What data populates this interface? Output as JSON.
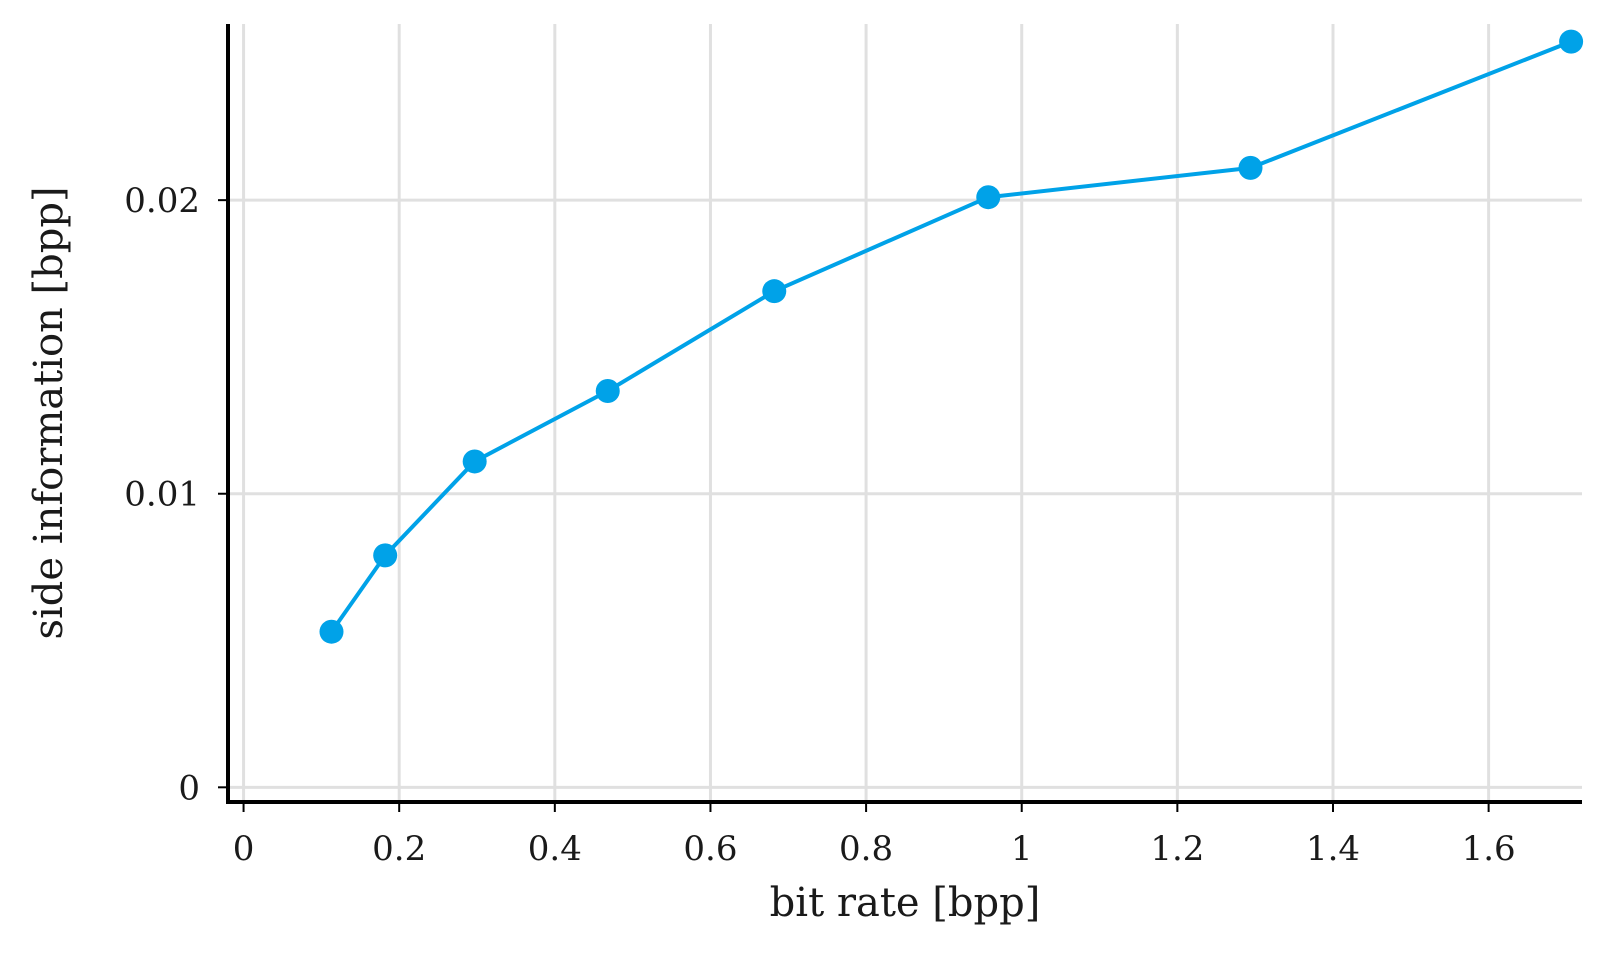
{
  "chart_data": {
    "type": "line",
    "xlabel": "bit rate [bpp]",
    "ylabel": "side information [bpp]",
    "xlim": [
      -0.02,
      1.72
    ],
    "ylim": [
      -0.0005,
      0.026
    ],
    "xticks": [
      0,
      0.2,
      0.4,
      0.6,
      0.8,
      1,
      1.2,
      1.4,
      1.6
    ],
    "xtick_labels": [
      "0",
      "0.2",
      "0.4",
      "0.6",
      "0.8",
      "1",
      "1.2",
      "1.4",
      "1.6"
    ],
    "yticks": [
      0,
      0.01,
      0.02
    ],
    "ytick_labels": [
      "0",
      "0.01",
      "0.02"
    ],
    "grid": true,
    "series": [
      {
        "color": "#00a2e8",
        "marker": "circle",
        "x": [
          0.113,
          0.182,
          0.297,
          0.468,
          0.682,
          0.957,
          1.294,
          1.706
        ],
        "y": [
          0.0053,
          0.0079,
          0.0111,
          0.0135,
          0.0169,
          0.0201,
          0.0211,
          0.0254
        ]
      }
    ]
  }
}
